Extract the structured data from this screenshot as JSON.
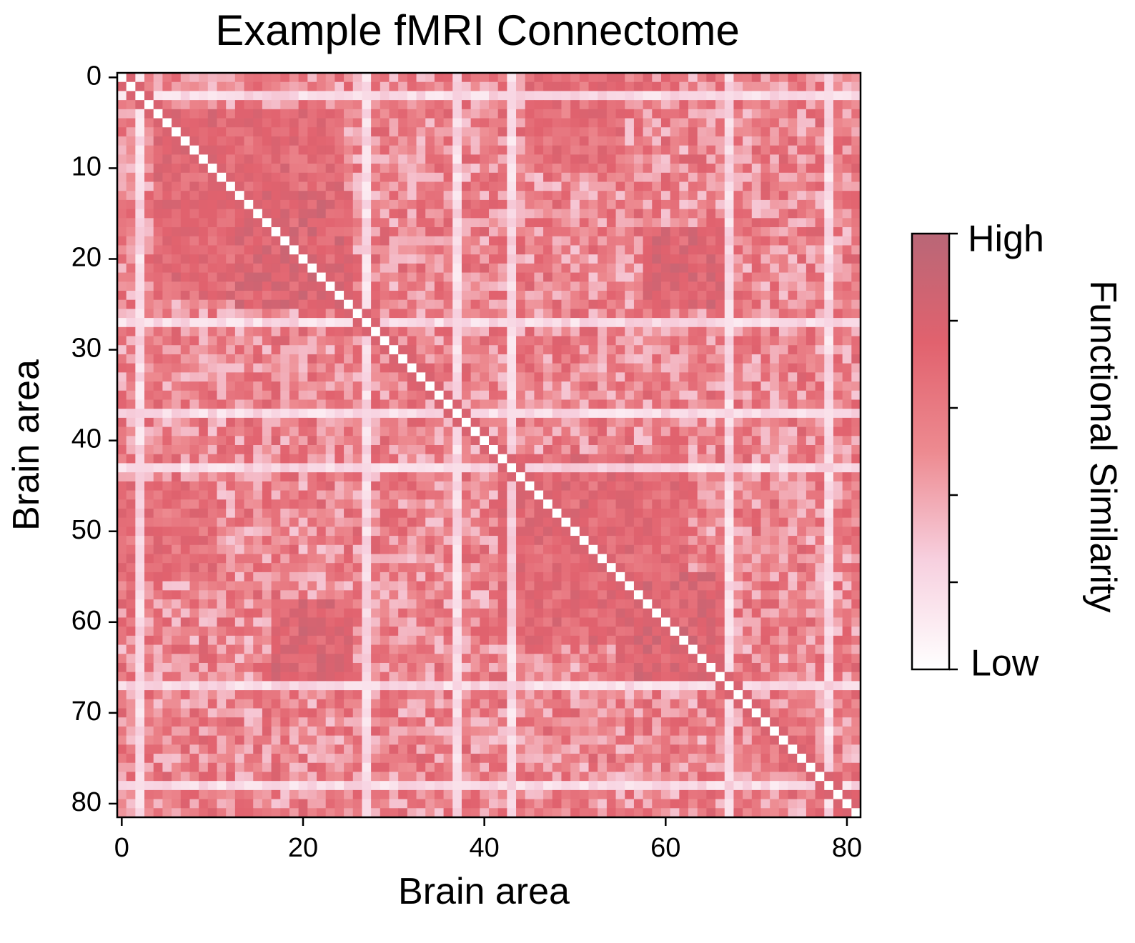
{
  "chart_data": {
    "type": "heatmap",
    "title": "Example fMRI Connectome",
    "xlabel": "Brain area",
    "ylabel": "Brain area",
    "n": 82,
    "x_ticks": [
      0,
      20,
      40,
      60,
      80
    ],
    "y_ticks": [
      0,
      10,
      20,
      30,
      40,
      50,
      60,
      70,
      80
    ],
    "x_tick_labels": [
      "0",
      "20",
      "40",
      "60",
      "80"
    ],
    "y_tick_labels": [
      "0",
      "10",
      "20",
      "30",
      "40",
      "50",
      "60",
      "70",
      "80"
    ],
    "xlim": [
      -0.5,
      81.5
    ],
    "ylim": [
      81.5,
      -0.5
    ],
    "diagonal_value": 0,
    "low_value_areas": [
      2,
      27,
      37,
      43,
      67,
      78
    ],
    "high_similarity_blocks": [
      {
        "areas": [
          4,
          24
        ],
        "value": 0.8
      },
      {
        "areas": [
          13,
          25
        ],
        "value": 0.85
      },
      {
        "areas": [
          42,
          62
        ],
        "value": 0.8
      },
      {
        "areas": [
          55,
          66
        ],
        "value": 0.85
      },
      {
        "areas": [
          17,
          25
        ],
        "with_areas": [
          58,
          66
        ],
        "value": 0.85
      },
      {
        "areas": [
          0,
          10
        ],
        "with_areas": [
          45,
          55
        ],
        "value": 0.75
      }
    ],
    "colorbar": {
      "label": "Functional Similarity",
      "high_label": "High",
      "low_label": "Low",
      "range": [
        0,
        1
      ],
      "tick_count": 6,
      "colors": [
        "#ffffff",
        "#f7d0df",
        "#ed8a90",
        "#e1626e",
        "#b96777"
      ]
    }
  }
}
